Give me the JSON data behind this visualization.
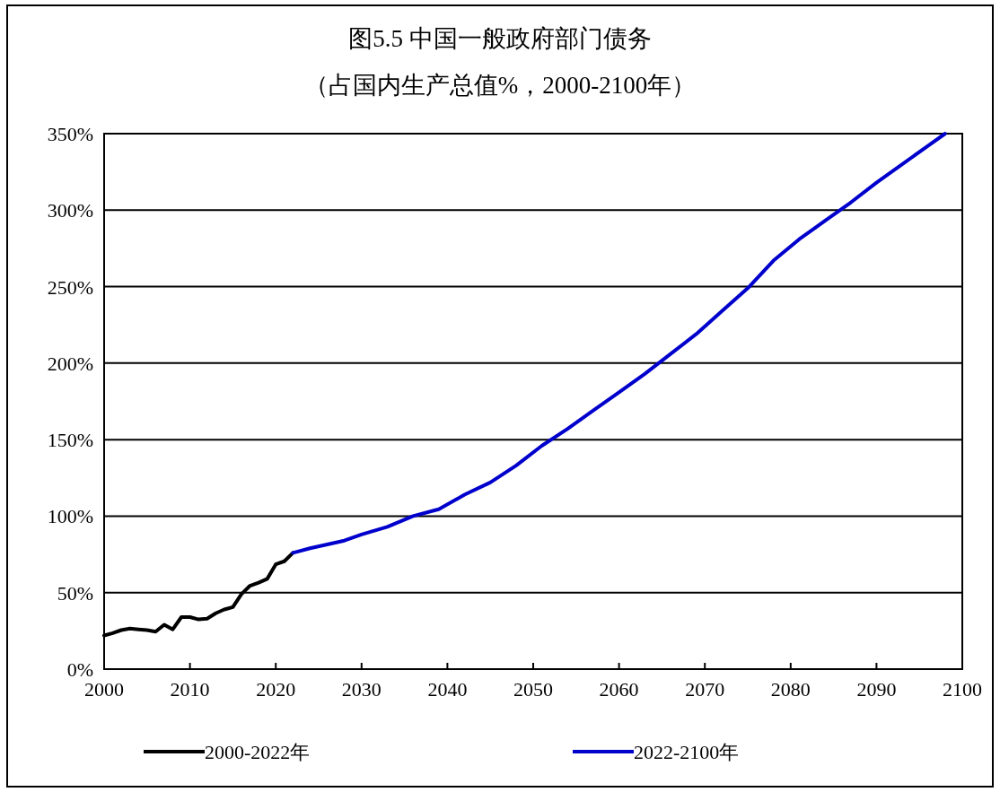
{
  "chart_data": {
    "type": "line",
    "title": "图5.5  中国一般政府部门债务",
    "subtitle": "（占国内生产总值%，2000-2100年）",
    "xlim": [
      2000,
      2100
    ],
    "xticks": [
      2000,
      2010,
      2020,
      2030,
      2040,
      2050,
      2060,
      2070,
      2080,
      2090,
      2100
    ],
    "ylim": [
      0,
      350
    ],
    "yticks": [
      {
        "value": 0,
        "label": "0%"
      },
      {
        "value": 50,
        "label": "50%"
      },
      {
        "value": 100,
        "label": "100%"
      },
      {
        "value": 150,
        "label": "150%"
      },
      {
        "value": 200,
        "label": "200%"
      },
      {
        "value": 250,
        "label": "250%"
      },
      {
        "value": 300,
        "label": "300%"
      },
      {
        "value": 350,
        "label": "350%"
      }
    ],
    "grid": "y",
    "legend": "bottom",
    "marker": "none",
    "line_style": "solid",
    "series": [
      {
        "name": "2000-2022年",
        "color": "#000000",
        "x": [
          2000,
          2001,
          2002,
          2003,
          2004,
          2005,
          2006,
          2007,
          2008,
          2009,
          2010,
          2011,
          2012,
          2013,
          2014,
          2015,
          2016,
          2017,
          2018,
          2019,
          2020,
          2021,
          2022
        ],
        "values": [
          22,
          23.5,
          25.5,
          26.5,
          26,
          25.5,
          24.5,
          29,
          26,
          34,
          34,
          32.5,
          33,
          36.5,
          39,
          40.5,
          49,
          54.5,
          56.5,
          59,
          68.5,
          70.5,
          76
        ]
      },
      {
        "name": "2022-2100年",
        "color": "#0000cc",
        "x": [
          2022,
          2024,
          2026,
          2028,
          2030,
          2033,
          2036,
          2039,
          2042,
          2045,
          2048,
          2051,
          2054,
          2057,
          2060,
          2063,
          2066,
          2069,
          2072,
          2075,
          2078,
          2081,
          2084,
          2087,
          2090,
          2093,
          2096,
          2098
        ],
        "values": [
          76,
          79,
          81.5,
          84,
          88,
          93,
          100,
          104.5,
          114,
          122,
          133,
          146,
          157,
          169,
          181,
          193,
          206,
          219,
          234,
          249,
          267,
          281,
          293,
          305,
          318,
          330,
          342,
          350
        ]
      }
    ]
  }
}
